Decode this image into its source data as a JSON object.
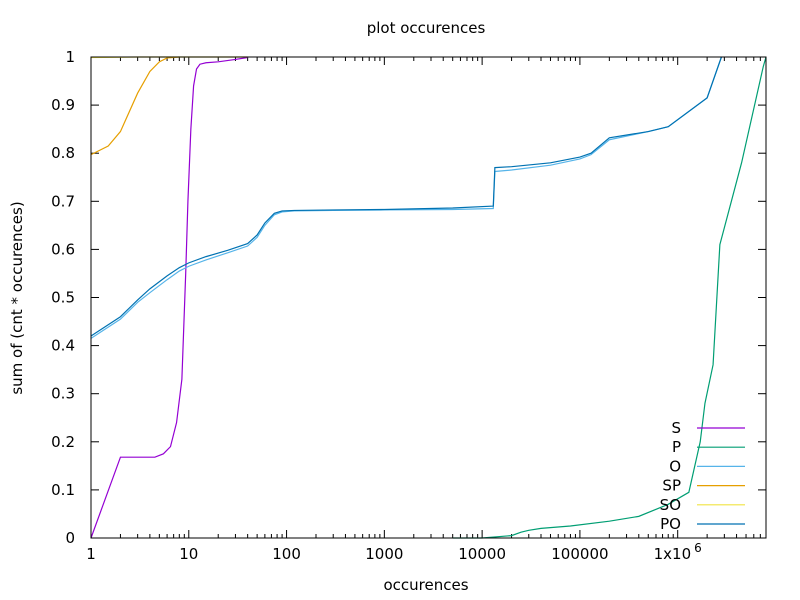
{
  "chart_data": {
    "type": "line",
    "title": "plot occurences",
    "xlabel": "occurences",
    "ylabel": "sum of (cnt * occurences)",
    "xscale": "log",
    "xlim": [
      1,
      8000000
    ],
    "ylim": [
      0,
      1
    ],
    "legend_position": "bottom-right",
    "x_ticks": [
      {
        "value": 1,
        "label": "1"
      },
      {
        "value": 10,
        "label": "10"
      },
      {
        "value": 100,
        "label": "100"
      },
      {
        "value": 1000,
        "label": "1000"
      },
      {
        "value": 10000,
        "label": "10000"
      },
      {
        "value": 100000,
        "label": "100000"
      },
      {
        "value": 1000000,
        "label": "1x10",
        "superscript": "6"
      }
    ],
    "y_ticks": [
      {
        "value": 0,
        "label": "0"
      },
      {
        "value": 0.1,
        "label": "0.1"
      },
      {
        "value": 0.2,
        "label": "0.2"
      },
      {
        "value": 0.3,
        "label": "0.3"
      },
      {
        "value": 0.4,
        "label": "0.4"
      },
      {
        "value": 0.5,
        "label": "0.5"
      },
      {
        "value": 0.6,
        "label": "0.6"
      },
      {
        "value": 0.7,
        "label": "0.7"
      },
      {
        "value": 0.8,
        "label": "0.8"
      },
      {
        "value": 0.9,
        "label": "0.9"
      },
      {
        "value": 1,
        "label": "1"
      }
    ],
    "series": [
      {
        "name": "S",
        "color": "#9400d3",
        "points": [
          [
            1,
            0
          ],
          [
            2,
            0.168
          ],
          [
            3,
            0.168
          ],
          [
            4.5,
            0.168
          ],
          [
            5.5,
            0.175
          ],
          [
            6.5,
            0.19
          ],
          [
            7.5,
            0.24
          ],
          [
            8.5,
            0.33
          ],
          [
            9.3,
            0.55
          ],
          [
            9.8,
            0.7
          ],
          [
            10.5,
            0.85
          ],
          [
            11.2,
            0.94
          ],
          [
            12,
            0.975
          ],
          [
            13,
            0.985
          ],
          [
            15,
            0.988
          ],
          [
            20,
            0.99
          ],
          [
            30,
            0.995
          ],
          [
            40,
            0.999
          ]
        ]
      },
      {
        "name": "P",
        "color": "#009e73",
        "points": [
          [
            5000,
            0
          ],
          [
            10000,
            0
          ],
          [
            20000,
            0.005
          ],
          [
            25000,
            0.012
          ],
          [
            30000,
            0.016
          ],
          [
            40000,
            0.02
          ],
          [
            80000,
            0.025
          ],
          [
            200000,
            0.035
          ],
          [
            400000,
            0.045
          ],
          [
            800000,
            0.07
          ],
          [
            1300000,
            0.095
          ],
          [
            1700000,
            0.2
          ],
          [
            1900000,
            0.28
          ],
          [
            2300000,
            0.36
          ],
          [
            2700000,
            0.61
          ],
          [
            4500000,
            0.78
          ],
          [
            7500000,
            0.98
          ],
          [
            8000000,
            1.0
          ]
        ]
      },
      {
        "name": "O",
        "color": "#56b4e9",
        "points": [
          [
            1,
            0.415
          ],
          [
            2,
            0.455
          ],
          [
            3,
            0.49
          ],
          [
            4,
            0.51
          ],
          [
            6,
            0.537
          ],
          [
            8,
            0.555
          ],
          [
            10,
            0.565
          ],
          [
            15,
            0.578
          ],
          [
            25,
            0.593
          ],
          [
            40,
            0.607
          ],
          [
            50,
            0.625
          ],
          [
            60,
            0.65
          ],
          [
            75,
            0.672
          ],
          [
            90,
            0.678
          ],
          [
            120,
            0.68
          ],
          [
            300,
            0.681
          ],
          [
            1000,
            0.682
          ],
          [
            5000,
            0.683
          ],
          [
            13000,
            0.685
          ],
          [
            13500,
            0.762
          ],
          [
            20000,
            0.765
          ],
          [
            50000,
            0.775
          ],
          [
            100000,
            0.788
          ],
          [
            130000,
            0.797
          ],
          [
            200000,
            0.828
          ],
          [
            500000,
            0.845
          ],
          [
            800000,
            0.855
          ],
          [
            2000000,
            0.915
          ],
          [
            2800000,
            1.0
          ]
        ]
      },
      {
        "name": "SP",
        "color": "#e69f00",
        "points": [
          [
            1,
            0.797
          ],
          [
            1.5,
            0.815
          ],
          [
            2,
            0.845
          ],
          [
            3,
            0.925
          ],
          [
            4,
            0.97
          ],
          [
            5,
            0.99
          ],
          [
            6,
            0.998
          ],
          [
            8,
            1.0
          ]
        ]
      },
      {
        "name": "SO",
        "color": "#f0e442",
        "points": [
          [
            1,
            0.999
          ],
          [
            3,
            1.0
          ],
          [
            10,
            1.0
          ],
          [
            40,
            1.0
          ]
        ]
      },
      {
        "name": "PO",
        "color": "#0072b2",
        "points": [
          [
            1,
            0.42
          ],
          [
            2,
            0.46
          ],
          [
            3,
            0.495
          ],
          [
            4,
            0.518
          ],
          [
            6,
            0.545
          ],
          [
            8,
            0.562
          ],
          [
            10,
            0.572
          ],
          [
            15,
            0.585
          ],
          [
            25,
            0.598
          ],
          [
            40,
            0.612
          ],
          [
            50,
            0.63
          ],
          [
            60,
            0.655
          ],
          [
            75,
            0.675
          ],
          [
            90,
            0.68
          ],
          [
            120,
            0.681
          ],
          [
            300,
            0.682
          ],
          [
            1000,
            0.683
          ],
          [
            5000,
            0.686
          ],
          [
            13000,
            0.69
          ],
          [
            13500,
            0.77
          ],
          [
            20000,
            0.772
          ],
          [
            50000,
            0.78
          ],
          [
            100000,
            0.792
          ],
          [
            130000,
            0.8
          ],
          [
            200000,
            0.832
          ],
          [
            500000,
            0.845
          ],
          [
            800000,
            0.855
          ],
          [
            2000000,
            0.915
          ],
          [
            2800000,
            1.0
          ]
        ]
      }
    ]
  }
}
